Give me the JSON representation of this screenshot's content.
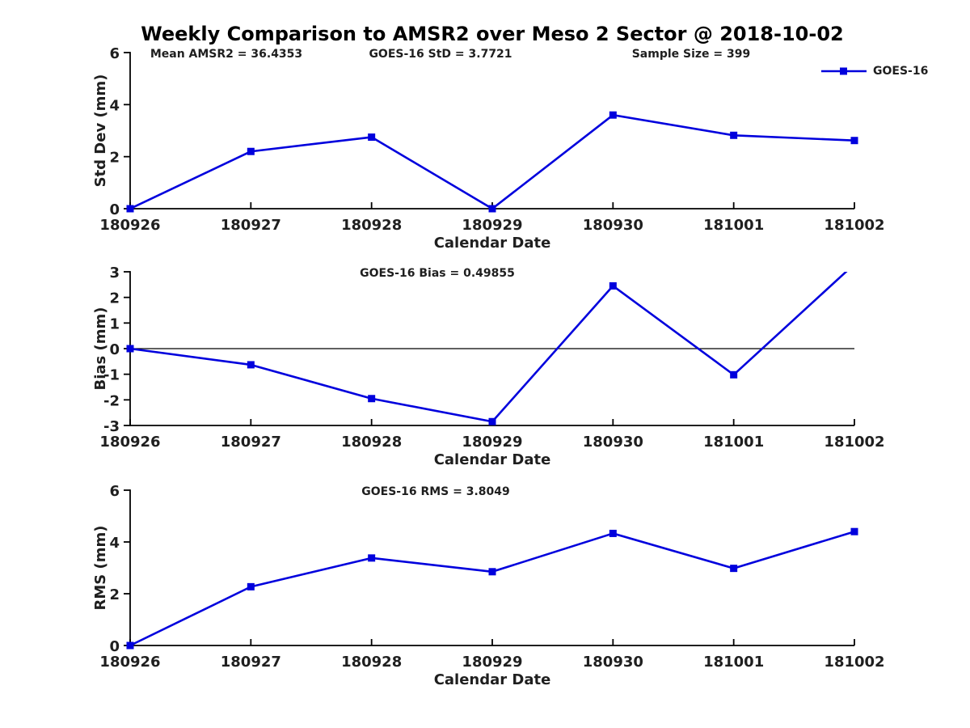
{
  "figure": {
    "title": "Weekly Comparison to AMSR2 over Meso 2 Sector @ 2018-10-02",
    "legend": {
      "label": "GOES-16",
      "marker": "filled-square-on-line"
    },
    "colors": {
      "series": "#0000dd",
      "axis": "#000000",
      "text": "#1f1f1f",
      "background": "#ffffff"
    }
  },
  "chart_data": [
    {
      "type": "line",
      "annotations": [
        "Mean AMSR2 = 36.4353",
        "GOES-16 StD = 3.7721",
        "Sample Size = 399"
      ],
      "categories": [
        "180926",
        "180927",
        "180928",
        "180929",
        "180930",
        "181001",
        "181002"
      ],
      "series": [
        {
          "name": "GOES-16",
          "values": [
            0,
            2.2,
            2.75,
            0,
            3.6,
            2.82,
            2.62
          ]
        }
      ],
      "xlabel": "Calendar Date",
      "ylabel": "Std Dev (mm)",
      "ylim": [
        0,
        6
      ],
      "yticks": [
        0,
        2,
        4,
        6
      ],
      "grid": false,
      "zero_line": false,
      "legend_position": "top-right"
    },
    {
      "type": "line",
      "annotations": [
        "GOES-16 Bias  = 0.49855"
      ],
      "categories": [
        "180926",
        "180927",
        "180928",
        "180929",
        "180930",
        "181001",
        "181002"
      ],
      "series": [
        {
          "name": "GOES-16",
          "values": [
            0,
            -0.63,
            -1.95,
            -2.85,
            2.45,
            -1.02,
            3.3
          ]
        }
      ],
      "xlabel": "Calendar Date",
      "ylabel": "Bias (mm)",
      "ylim": [
        -3,
        3
      ],
      "yticks": [
        -3,
        -2,
        -1,
        0,
        1,
        2,
        3
      ],
      "grid": false,
      "zero_line": true,
      "legend_position": "none"
    },
    {
      "type": "line",
      "annotations": [
        "GOES-16 RMS = 3.8049"
      ],
      "categories": [
        "180926",
        "180927",
        "180928",
        "180929",
        "180930",
        "181001",
        "181002"
      ],
      "series": [
        {
          "name": "GOES-16",
          "values": [
            0,
            2.27,
            3.38,
            2.85,
            4.33,
            2.98,
            4.4
          ]
        }
      ],
      "xlabel": "Calendar Date",
      "ylabel": "RMS (mm)",
      "ylim": [
        0,
        6
      ],
      "yticks": [
        0,
        2,
        4,
        6
      ],
      "grid": false,
      "zero_line": false,
      "legend_position": "none"
    }
  ]
}
